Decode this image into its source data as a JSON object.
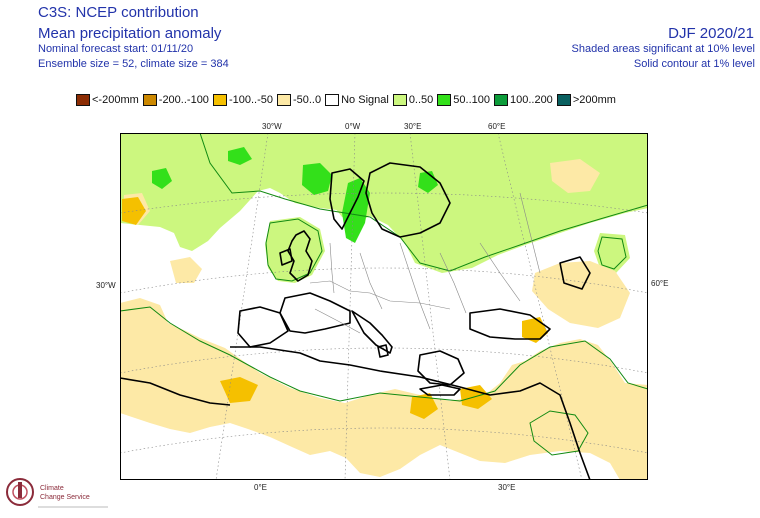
{
  "header": {
    "title": "C3S: NCEP contribution",
    "subtitle": "Mean precipitation anomaly",
    "forecast_start": "Nominal forecast start: 01/11/20",
    "ensemble": "Ensemble size = 52, climate size = 384",
    "season": "DJF 2020/21",
    "shaded_note": "Shaded areas significant at 10% level",
    "contour_note": "Solid contour at 1% level"
  },
  "legend": [
    {
      "label": "<-200mm",
      "color": "#8c2d04"
    },
    {
      "label": "-200..-100",
      "color": "#cc8800"
    },
    {
      "label": "-100..-50",
      "color": "#f5c000"
    },
    {
      "label": "-50..0",
      "color": "#fde9a6"
    },
    {
      "label": "No Signal",
      "color": "#ffffff"
    },
    {
      "label": "0..50",
      "color": "#ccf77f"
    },
    {
      "label": "50..100",
      "color": "#33e01a"
    },
    {
      "label": "100..200",
      "color": "#0c9c3a"
    },
    {
      "label": ">200mm",
      "color": "#0a6060"
    }
  ],
  "axis_labels": {
    "top": [
      "30°W",
      "0°W",
      "30°E",
      "60°E"
    ],
    "left": "30°W",
    "right": "60°E",
    "bottom": [
      "0°E",
      "30°E"
    ]
  },
  "logo": {
    "line1": "Climate",
    "line2": "Change Service"
  }
}
